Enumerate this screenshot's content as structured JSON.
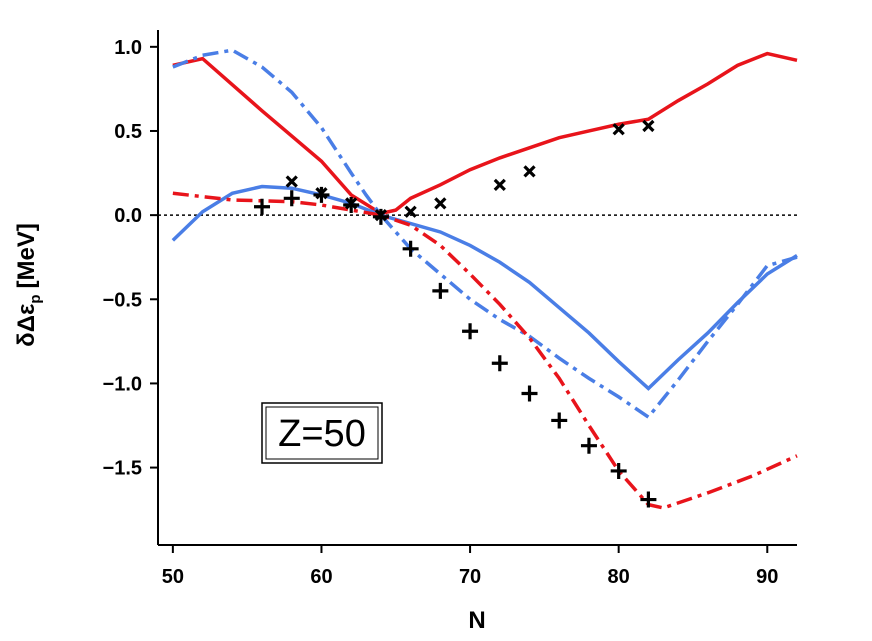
{
  "chart_data": {
    "type": "line",
    "x_label": "N",
    "y_label": {
      "symbol": "δΔε",
      "sub": "p",
      "unit": "[MeV]"
    },
    "annotation": "Z=50",
    "xlim": [
      49,
      92
    ],
    "ylim": [
      -1.96,
      1.1
    ],
    "xticks": [
      50,
      60,
      70,
      80,
      90
    ],
    "yticks": [
      {
        "value": 1,
        "label": "1.0"
      },
      0.5,
      {
        "value": 0,
        "label": "0.0"
      },
      {
        "value": -0.5,
        "label": "−0.5"
      },
      {
        "value": -1,
        "label": "−1.0"
      },
      {
        "value": -1.5,
        "label": "−1.5"
      }
    ],
    "hline": 0,
    "series": [
      {
        "color": "#e8141b",
        "style": "solid",
        "x": [
          50,
          52,
          56,
          60,
          62,
          64,
          65,
          66,
          68,
          70,
          72,
          74,
          76,
          78,
          80,
          82,
          84,
          86,
          88,
          90,
          92
        ],
        "values": [
          0.89,
          0.93,
          0.62,
          0.32,
          0.12,
          0.01,
          0.03,
          0.1,
          0.18,
          0.27,
          0.34,
          0.4,
          0.46,
          0.5,
          0.54,
          0.57,
          0.68,
          0.78,
          0.89,
          0.96,
          0.92
        ]
      },
      {
        "color": "#4a7ee6",
        "style": "dashdot",
        "x": [
          50,
          52,
          54,
          56,
          58,
          60,
          62,
          63,
          64,
          66,
          68,
          70,
          72,
          74,
          76,
          78,
          80,
          82,
          84,
          86,
          88,
          90,
          92
        ],
        "values": [
          0.88,
          0.95,
          0.98,
          0.88,
          0.73,
          0.52,
          0.25,
          0.12,
          0.0,
          -0.2,
          -0.35,
          -0.5,
          -0.62,
          -0.72,
          -0.85,
          -0.97,
          -1.08,
          -1.2,
          -0.98,
          -0.75,
          -0.53,
          -0.3,
          -0.25
        ]
      },
      {
        "color": "#4a7ee6",
        "style": "solid",
        "x": [
          50,
          52,
          54,
          56,
          58,
          60,
          62,
          64,
          66,
          68,
          70,
          72,
          74,
          76,
          78,
          80,
          82,
          84,
          86,
          88,
          90,
          92
        ],
        "values": [
          -0.15,
          0.02,
          0.13,
          0.17,
          0.16,
          0.12,
          0.07,
          0.0,
          -0.05,
          -0.1,
          -0.18,
          -0.28,
          -0.4,
          -0.55,
          -0.7,
          -0.87,
          -1.03,
          -0.86,
          -0.7,
          -0.52,
          -0.35,
          -0.24
        ]
      },
      {
        "color": "#e8141b",
        "style": "dashdot",
        "x": [
          50,
          54,
          58,
          60,
          62,
          64,
          66,
          68,
          70,
          72,
          74,
          76,
          78,
          80,
          82,
          83,
          86,
          89,
          92
        ],
        "values": [
          0.13,
          0.09,
          0.08,
          0.06,
          0.03,
          0.0,
          -0.06,
          -0.18,
          -0.35,
          -0.53,
          -0.73,
          -0.97,
          -1.25,
          -1.52,
          -1.72,
          -1.74,
          -1.65,
          -1.55,
          -1.43
        ]
      },
      {
        "color": "#000000",
        "marker": "x",
        "x": [
          58,
          60,
          62,
          64,
          66,
          68,
          72,
          74,
          80,
          82
        ],
        "values": [
          0.2,
          0.13,
          0.07,
          0.0,
          0.02,
          0.07,
          0.18,
          0.26,
          0.51,
          0.53
        ]
      },
      {
        "color": "#000000",
        "marker": "+",
        "x": [
          56,
          58,
          60,
          62,
          64,
          66,
          68,
          70,
          72,
          74,
          76,
          78,
          80,
          82
        ],
        "values": [
          0.05,
          0.1,
          0.12,
          0.06,
          -0.01,
          -0.2,
          -0.45,
          -0.69,
          -0.88,
          -1.06,
          -1.22,
          -1.37,
          -1.52,
          -1.69
        ]
      }
    ]
  }
}
